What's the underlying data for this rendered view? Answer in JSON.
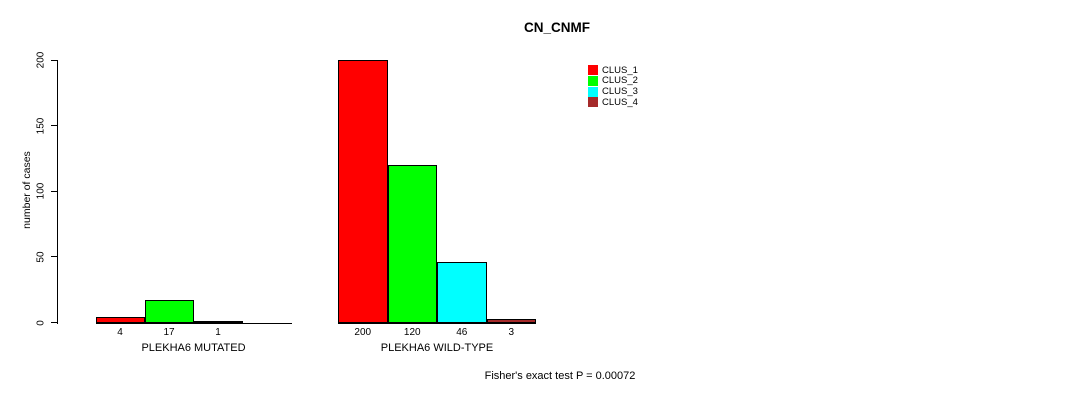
{
  "chart_data": {
    "type": "bar",
    "title": "CN_CNMF",
    "ylabel": "number of cases",
    "footnote": "Fisher's exact test P = 0.00072",
    "ylim": [
      0,
      200
    ],
    "yticks": [
      0,
      50,
      100,
      150,
      200
    ],
    "grid": false,
    "legend_position": "top-right",
    "categories": [
      "PLEKHA6 MUTATED",
      "PLEKHA6 WILD-TYPE"
    ],
    "series": [
      {
        "name": "CLUS_1",
        "color": "#FF0000",
        "values": [
          4,
          200
        ]
      },
      {
        "name": "CLUS_2",
        "color": "#00FF00",
        "values": [
          17,
          120
        ]
      },
      {
        "name": "CLUS_3",
        "color": "#00FFFF",
        "values": [
          1,
          46
        ]
      },
      {
        "name": "CLUS_4",
        "color": "#A52A2A",
        "values": [
          0,
          3
        ]
      }
    ],
    "groups": [
      {
        "label": "PLEKHA6 MUTATED",
        "values": [
          4,
          17,
          1,
          0
        ],
        "value_labels": [
          "4",
          "17",
          "1",
          ""
        ]
      },
      {
        "label": "PLEKHA6 WILD-TYPE",
        "values": [
          200,
          120,
          46,
          3
        ],
        "value_labels": [
          "200",
          "120",
          "46",
          "3"
        ]
      }
    ],
    "bar_border_color": "#000000",
    "text_color": "#000000",
    "background_color": "#FFFFFF"
  }
}
